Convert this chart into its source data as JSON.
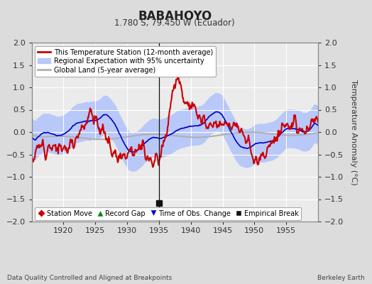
{
  "title": "BABAHOYO",
  "subtitle": "1.780 S, 79.450 W (Ecuador)",
  "ylabel": "Temperature Anomaly (°C)",
  "xlabel_note": "Data Quality Controlled and Aligned at Breakpoints",
  "credit": "Berkeley Earth",
  "xlim": [
    1915,
    1960
  ],
  "ylim": [
    -2,
    2
  ],
  "yticks": [
    -2,
    -1.5,
    -1,
    -0.5,
    0,
    0.5,
    1,
    1.5,
    2
  ],
  "xticks": [
    1920,
    1925,
    1930,
    1935,
    1940,
    1945,
    1950,
    1955
  ],
  "bg_color": "#dcdcdc",
  "plot_bg_color": "#ebebeb",
  "red_line_color": "#cc0000",
  "blue_line_color": "#0000cc",
  "blue_band_color": "#b8c8f8",
  "gray_line_color": "#b0b0b0",
  "grid_color": "#ffffff",
  "empirical_break_x": 1935.0,
  "legend_items": [
    {
      "label": "This Temperature Station (12-month average)",
      "color": "#cc0000",
      "lw": 2
    },
    {
      "label": "Regional Expectation with 95% uncertainty",
      "color": "#b8c8f8",
      "lw": 8
    },
    {
      "label": "Global Land (5-year average)",
      "color": "#b0b0b0",
      "lw": 2
    }
  ],
  "marker_legend": [
    {
      "label": "Station Move",
      "marker": "D",
      "color": "#cc0000"
    },
    {
      "label": "Record Gap",
      "marker": "^",
      "color": "#008800"
    },
    {
      "label": "Time of Obs. Change",
      "marker": "v",
      "color": "#0000cc"
    },
    {
      "label": "Empirical Break",
      "marker": "s",
      "color": "#111111"
    }
  ]
}
